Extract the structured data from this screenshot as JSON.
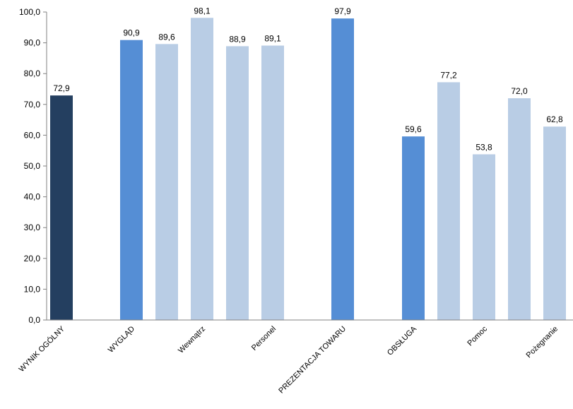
{
  "chart_data": {
    "type": "bar",
    "ylim": [
      0,
      100
    ],
    "yticks": [
      "0,0",
      "10,0",
      "20,0",
      "30,0",
      "40,0",
      "50,0",
      "60,0",
      "70,0",
      "80,0",
      "90,0",
      "100,0"
    ],
    "grid": false,
    "legend": "none",
    "bars": [
      {
        "value": 72.9,
        "label": "72,9",
        "color": "#243F60"
      },
      {
        "value": 90.9,
        "label": "90,9",
        "color": "#558ED5"
      },
      {
        "value": 89.6,
        "label": "89,6",
        "color": "#B9CDE5"
      },
      {
        "value": 98.1,
        "label": "98,1",
        "color": "#B9CDE5"
      },
      {
        "value": 88.9,
        "label": "88,9",
        "color": "#B9CDE5"
      },
      {
        "value": 89.1,
        "label": "89,1",
        "color": "#B9CDE5"
      },
      {
        "value": 97.9,
        "label": "97,9",
        "color": "#558ED5"
      },
      {
        "value": 59.6,
        "label": "59,6",
        "color": "#558ED5"
      },
      {
        "value": 77.2,
        "label": "77,2",
        "color": "#B9CDE5"
      },
      {
        "value": 53.8,
        "label": "53,8",
        "color": "#B9CDE5"
      },
      {
        "value": 72.0,
        "label": "72,0",
        "color": "#B9CDE5"
      },
      {
        "value": 62.8,
        "label": "62,8",
        "color": "#B9CDE5"
      }
    ],
    "category_labels": [
      {
        "text": "WYNIK OGÓLNY",
        "bar": 0
      },
      {
        "text": "WYGLĄD",
        "bar": 1
      },
      {
        "text": "Wewnątrz",
        "bar": 3
      },
      {
        "text": "Personel",
        "bar": 5
      },
      {
        "text": "PREZENTACJA TOWARU",
        "bar": 6
      },
      {
        "text": "OBSŁUGA",
        "bar": 7
      },
      {
        "text": "Pomoc",
        "bar": 9
      },
      {
        "text": "Pożegnanie",
        "bar": 11
      }
    ]
  }
}
